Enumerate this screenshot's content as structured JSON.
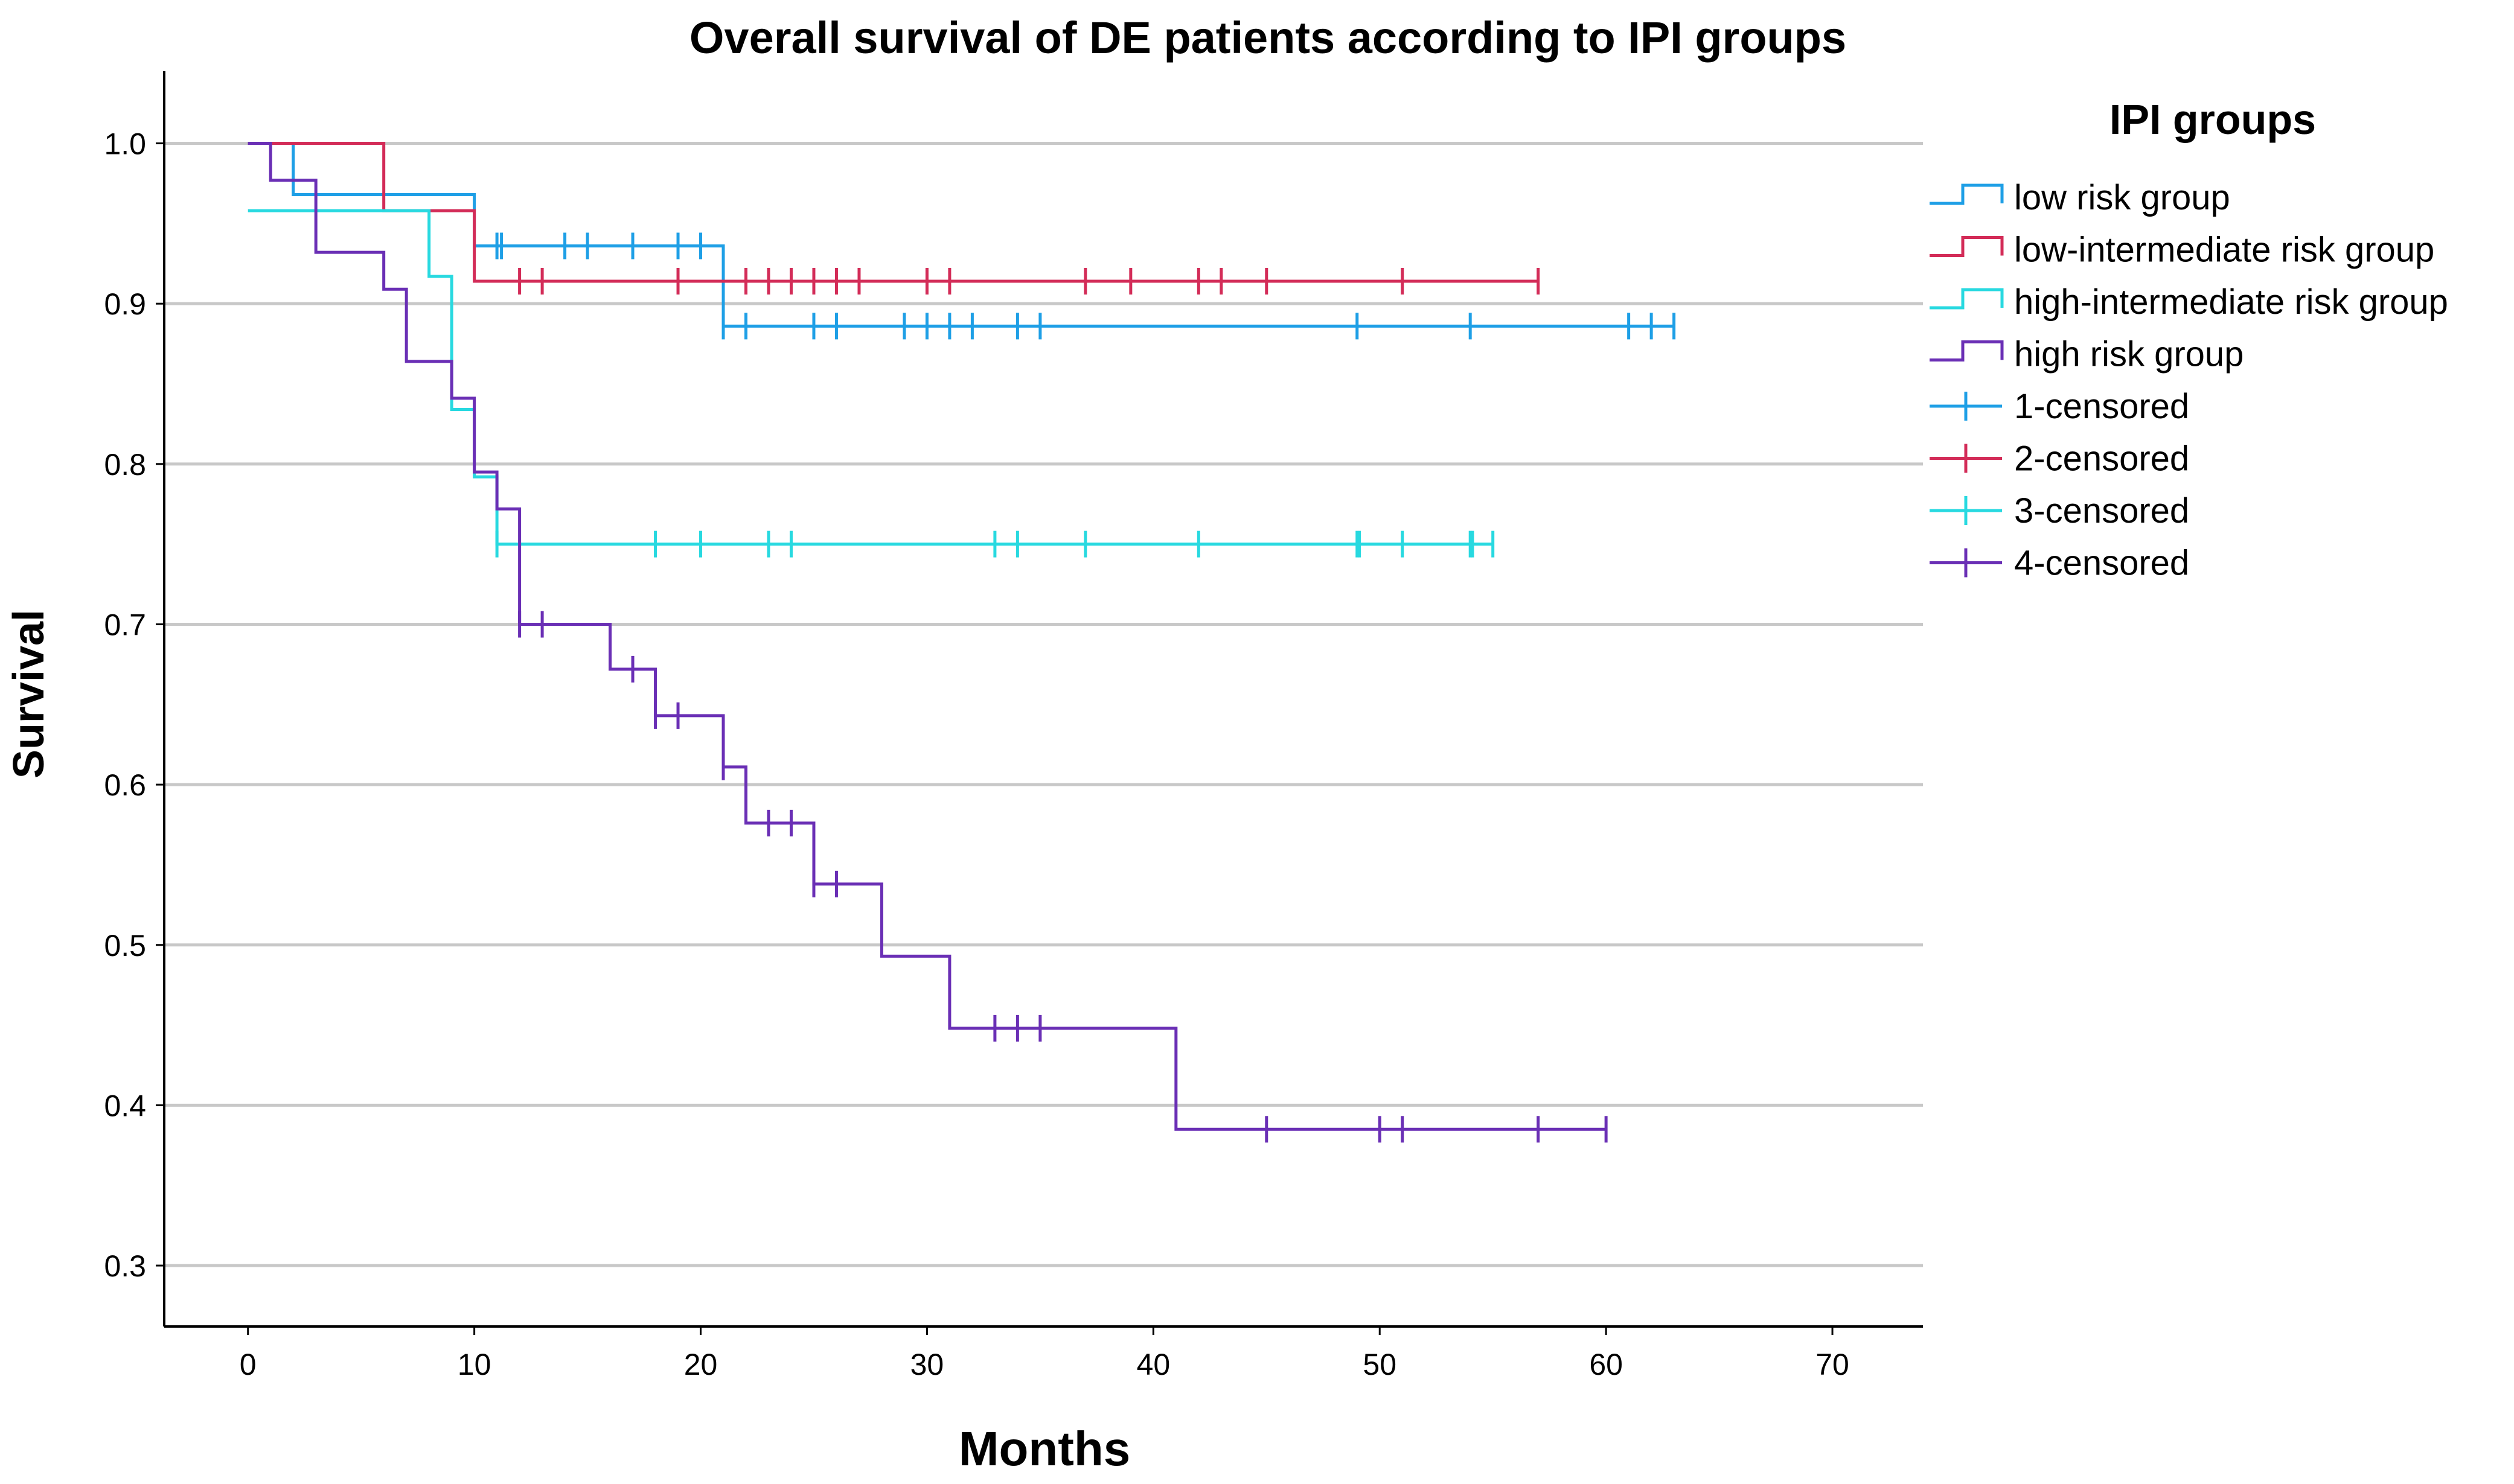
{
  "chart_data": {
    "type": "line",
    "subtype": "kaplan-meier step plot",
    "title": "Overall survival of DE patients according to IPI groups",
    "xlabel": "Months",
    "ylabel": "Survival",
    "xlim": [
      -3.7,
      74
    ],
    "ylim": [
      0.262,
      1.045
    ],
    "xticks": [
      "0",
      "10",
      "20",
      "30",
      "40",
      "50",
      "60",
      "70"
    ],
    "yticks": [
      "0.3",
      "0.4",
      "0.5",
      "0.6",
      "0.7",
      "0.8",
      "0.9",
      "1.0"
    ],
    "grid": "horizontal",
    "legend": {
      "title": "IPI groups",
      "position": "right",
      "entries": [
        {
          "label": "low risk group",
          "kind": "step",
          "color": "#1E9FE6"
        },
        {
          "label": "low-intermediate risk group",
          "kind": "step",
          "color": "#D32C58"
        },
        {
          "label": "high-intermediate risk group",
          "kind": "step",
          "color": "#28D9E0"
        },
        {
          "label": "high risk group",
          "kind": "step",
          "color": "#6A2FB5"
        },
        {
          "label": "1-censored",
          "kind": "censor",
          "color": "#1E9FE6"
        },
        {
          "label": "2-censored",
          "kind": "censor",
          "color": "#D32C58"
        },
        {
          "label": "3-censored",
          "kind": "censor",
          "color": "#28D9E0"
        },
        {
          "label": "4-censored",
          "kind": "censor",
          "color": "#6A2FB5"
        }
      ]
    },
    "series": [
      {
        "name": "low risk group",
        "color": "#1E9FE6",
        "steps": [
          [
            0,
            1.0
          ],
          [
            2,
            0.968
          ],
          [
            10,
            0.936
          ],
          [
            21,
            0.886
          ]
        ],
        "end": 63,
        "censored": [
          11,
          11.2,
          14,
          15,
          17,
          19,
          20,
          21,
          22,
          25,
          26,
          29,
          30,
          31,
          32,
          34,
          35,
          49,
          54,
          61,
          62,
          63
        ]
      },
      {
        "name": "low-intermediate risk group",
        "color": "#D32C58",
        "steps": [
          [
            0,
            1.0
          ],
          [
            6,
            0.958
          ],
          [
            10,
            0.914
          ]
        ],
        "end": 57,
        "censored": [
          12,
          13,
          19,
          22,
          23,
          24,
          25,
          26,
          27,
          30,
          31,
          37,
          39,
          42,
          43,
          45,
          51,
          57
        ]
      },
      {
        "name": "high-intermediate risk group",
        "color": "#28D9E0",
        "steps": [
          [
            0,
            0.958
          ],
          [
            8,
            0.917
          ],
          [
            9,
            0.834
          ],
          [
            10,
            0.792
          ],
          [
            11,
            0.75
          ]
        ],
        "end": 55,
        "censored": [
          11,
          18,
          20,
          23,
          24,
          33,
          34,
          37,
          42,
          49,
          49.1,
          51,
          54,
          54.1,
          55
        ]
      },
      {
        "name": "high risk group",
        "color": "#6A2FB5",
        "steps": [
          [
            0,
            1.0
          ],
          [
            1,
            0.977
          ],
          [
            3,
            0.932
          ],
          [
            6,
            0.909
          ],
          [
            7,
            0.864
          ],
          [
            9,
            0.841
          ],
          [
            10,
            0.795
          ],
          [
            11,
            0.772
          ],
          [
            12,
            0.7
          ],
          [
            16,
            0.672
          ],
          [
            18,
            0.643
          ],
          [
            21,
            0.611
          ],
          [
            22,
            0.576
          ],
          [
            25,
            0.538
          ],
          [
            28,
            0.493
          ],
          [
            31,
            0.448
          ],
          [
            41,
            0.385
          ]
        ],
        "end": 60,
        "censored": [
          12,
          13,
          17,
          18,
          19,
          21,
          23,
          24,
          25,
          26,
          33,
          34,
          35,
          45,
          50,
          51,
          57,
          60
        ]
      }
    ]
  }
}
